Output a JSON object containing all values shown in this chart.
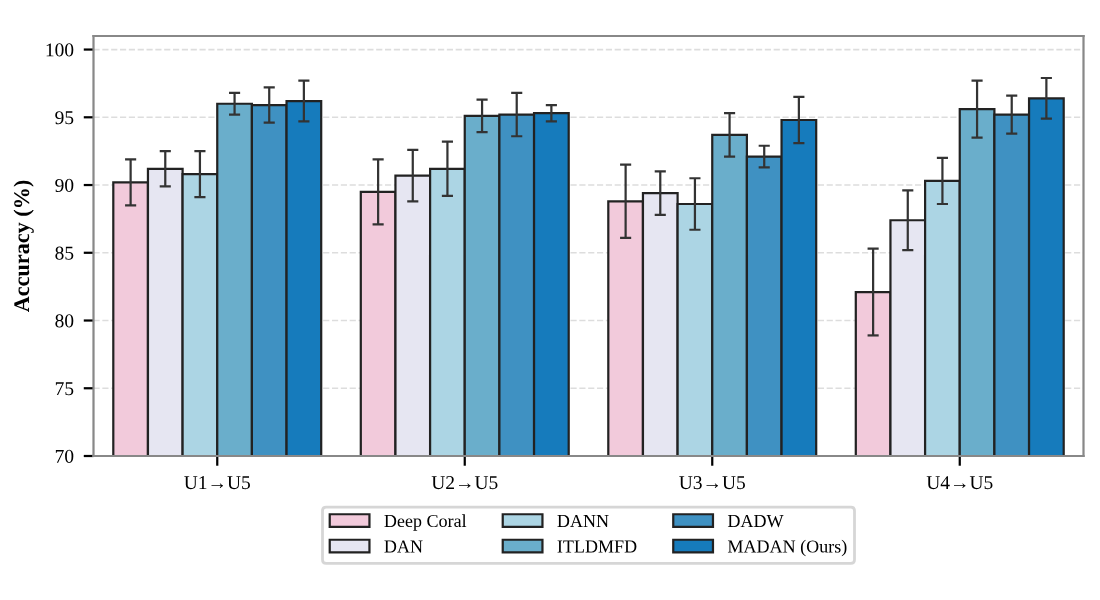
{
  "chart_data": {
    "type": "bar",
    "ylabel": "Accuracy (%)",
    "categories": [
      "U1→U5",
      "U2→U5",
      "U3→U5",
      "U4→U5"
    ],
    "series": [
      {
        "name": "Deep Coral",
        "color": "#f2cadb",
        "values": [
          90.2,
          89.5,
          88.8,
          82.1
        ],
        "errors": [
          1.7,
          2.4,
          2.7,
          3.2
        ]
      },
      {
        "name": "DAN",
        "color": "#e6e6f2",
        "values": [
          91.2,
          90.7,
          89.4,
          87.4
        ],
        "errors": [
          1.3,
          1.9,
          1.6,
          2.2
        ]
      },
      {
        "name": "DANN",
        "color": "#acd5e4",
        "values": [
          90.8,
          91.2,
          88.6,
          90.3
        ],
        "errors": [
          1.7,
          2.0,
          1.9,
          1.7
        ]
      },
      {
        "name": "ITLDMFD",
        "color": "#6aaecb",
        "values": [
          96.0,
          95.1,
          93.7,
          95.6
        ],
        "errors": [
          0.8,
          1.2,
          1.6,
          2.1
        ]
      },
      {
        "name": "DADW",
        "color": "#3f91c2",
        "values": [
          95.9,
          95.2,
          92.1,
          95.2
        ],
        "errors": [
          1.3,
          1.6,
          0.8,
          1.4
        ]
      },
      {
        "name": "MADAN (Ours)",
        "color": "#167bbc",
        "values": [
          96.2,
          95.3,
          94.8,
          96.4
        ],
        "errors": [
          1.5,
          0.6,
          1.7,
          1.5
        ]
      }
    ],
    "ylim": [
      70,
      101
    ],
    "yticks": [
      70,
      75,
      80,
      85,
      90,
      95,
      100
    ],
    "grid": "y",
    "legend": "bottom"
  }
}
